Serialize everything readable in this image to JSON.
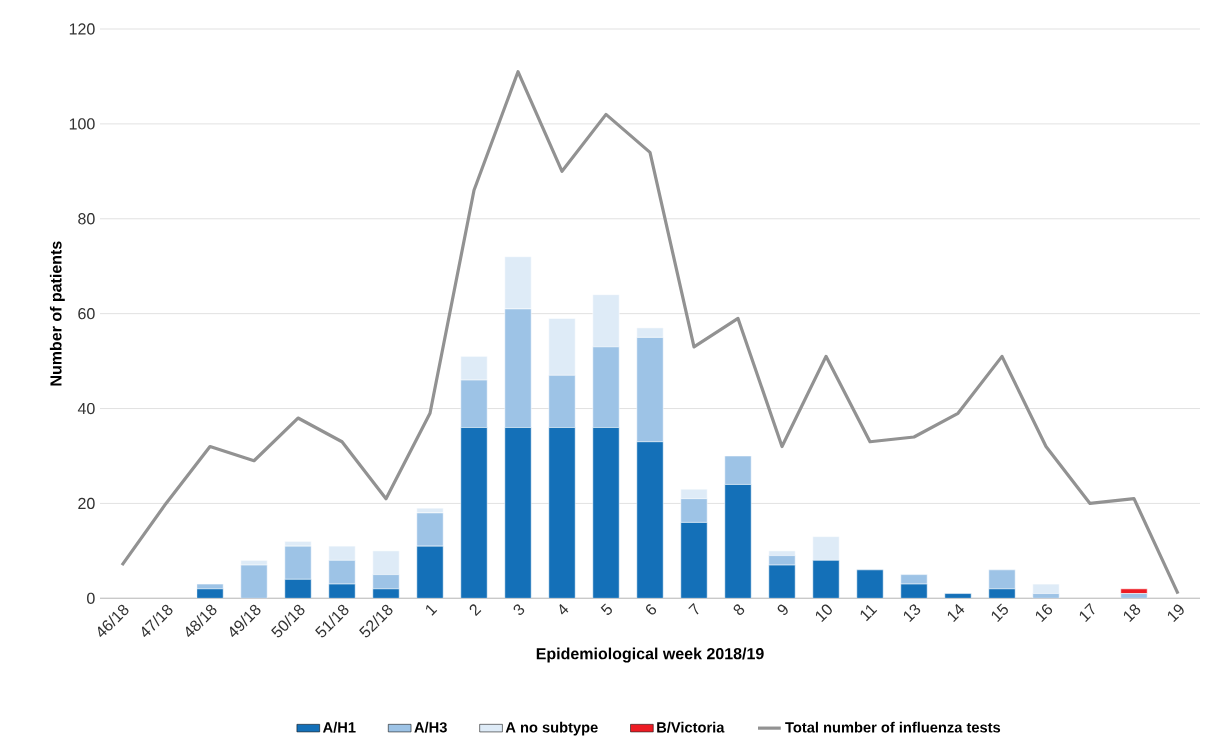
{
  "chart_data": {
    "type": "bar",
    "stacked": true,
    "xlabel": "Epidemiological week 2018/19",
    "ylabel": "Number of patients",
    "categories": [
      "46/18",
      "47/18",
      "48/18",
      "49/18",
      "50/18",
      "51/18",
      "52/18",
      "1",
      "2",
      "3",
      "4",
      "5",
      "6",
      "7",
      "8",
      "9",
      "10",
      "11",
      "13",
      "14",
      "15",
      "16",
      "17",
      "18",
      "19"
    ],
    "series": [
      {
        "name": "A/H1",
        "color": "#1470b8",
        "values": [
          0,
          0,
          2,
          0,
          4,
          3,
          2,
          11,
          36,
          36,
          36,
          36,
          33,
          16,
          24,
          7,
          8,
          6,
          3,
          1,
          2,
          0,
          0,
          0,
          0
        ]
      },
      {
        "name": "A/H3",
        "color": "#9dc3e6",
        "values": [
          0,
          0,
          1,
          7,
          7,
          5,
          3,
          7,
          10,
          25,
          11,
          17,
          22,
          5,
          6,
          2,
          0,
          0,
          2,
          0,
          4,
          1,
          0,
          1,
          0
        ]
      },
      {
        "name": "A no subtype",
        "color": "#deebf7",
        "values": [
          0,
          0,
          0,
          1,
          1,
          3,
          5,
          1,
          5,
          11,
          12,
          11,
          2,
          2,
          0,
          1,
          5,
          0,
          0,
          0,
          0,
          2,
          0,
          0,
          0
        ]
      },
      {
        "name": "B/Victoria",
        "color": "#ed1c24",
        "values": [
          0,
          0,
          0,
          0,
          0,
          0,
          0,
          0,
          0,
          0,
          0,
          0,
          0,
          0,
          0,
          0,
          0,
          0,
          0,
          0,
          0,
          0,
          0,
          1,
          0
        ]
      },
      {
        "name": "Total number of influenza tests",
        "type": "line",
        "color": "#929292",
        "values": [
          7,
          20,
          32,
          29,
          38,
          33,
          21,
          39,
          86,
          111,
          90,
          102,
          94,
          53,
          59,
          32,
          51,
          33,
          34,
          39,
          51,
          32,
          20,
          21,
          1
        ]
      }
    ],
    "ylim": [
      0,
      120
    ],
    "yticks": [
      0,
      20,
      40,
      60,
      80,
      100,
      120
    ],
    "grid": "y",
    "legend": "bottom"
  }
}
